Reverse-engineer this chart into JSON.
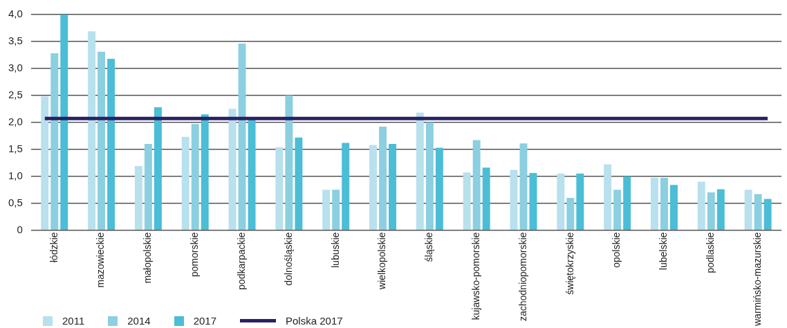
{
  "chart_data": {
    "type": "bar",
    "categories": [
      "łódzkie",
      "mazowieckie",
      "małopolskie",
      "pomorskie",
      "podkarpackie",
      "dolnośląskie",
      "lubuskie",
      "wielkopolskie",
      "śląskie",
      "kujawsko-pomorskie",
      "zachodniopomorskie",
      "świętokrzyskie",
      "opolskie",
      "lubelskie",
      "podlaskie",
      "warmińsko-mazurskie"
    ],
    "series": [
      {
        "name": "2011",
        "color": "#b8e0ed",
        "values": [
          2.48,
          3.69,
          1.19,
          1.73,
          2.25,
          1.54,
          0.75,
          1.58,
          2.18,
          1.07,
          1.12,
          1.05,
          1.22,
          0.97,
          0.9,
          0.75
        ]
      },
      {
        "name": "2014",
        "color": "#8bcfe1",
        "values": [
          3.28,
          3.31,
          1.6,
          1.97,
          3.46,
          2.5,
          0.75,
          1.92,
          2.0,
          1.67,
          1.61,
          0.6,
          0.75,
          0.97,
          0.7,
          0.67
        ]
      },
      {
        "name": "2017",
        "color": "#4bbdd6",
        "values": [
          4.0,
          3.18,
          2.28,
          2.15,
          2.05,
          1.72,
          1.62,
          1.6,
          1.53,
          1.16,
          1.06,
          1.05,
          1.0,
          0.84,
          0.76,
          0.58
        ]
      }
    ],
    "ref_lines": [
      {
        "axis": "y",
        "value": 2.07,
        "label": "Polska 2017",
        "color": "#2a2166"
      }
    ],
    "ylim": [
      0,
      4
    ],
    "yticks": [
      {
        "value": 0,
        "label": "0"
      },
      {
        "value": 0.5,
        "label": "0,5"
      },
      {
        "value": 1,
        "label": "1,0"
      },
      {
        "value": 1.5,
        "label": "1,5"
      },
      {
        "value": 2,
        "label": "2,0"
      },
      {
        "value": 2.5,
        "label": "2,5"
      },
      {
        "value": 3,
        "label": "3,0"
      },
      {
        "value": 3.5,
        "label": "3,5"
      },
      {
        "value": 4,
        "label": "4,0"
      }
    ],
    "grid": "y",
    "legend": "bottom left"
  }
}
